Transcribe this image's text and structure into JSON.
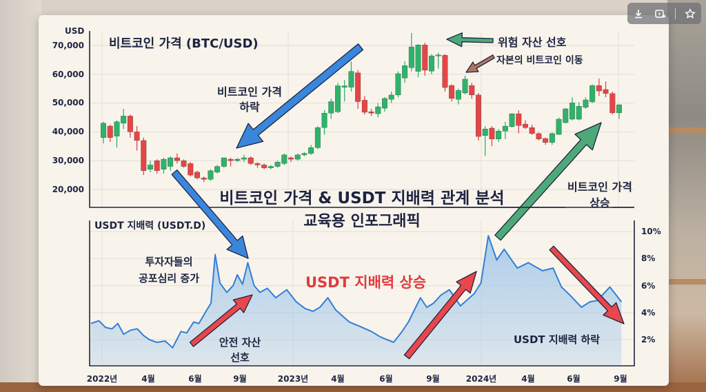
{
  "toolbar": {
    "icons": [
      "download-icon",
      "add-to-video-icon",
      "star-icon"
    ]
  },
  "colors": {
    "up": "#2fb36a",
    "down": "#e64545",
    "usdt_line": "#2f7fd8",
    "usdt_fill": "#a9cbea",
    "text": "#1d2340",
    "accent_red": "#e03a3e",
    "arrow_blue": "#3a86dc",
    "arrow_green": "#4daa78",
    "arrow_red": "#e8474b",
    "arrow_brown": "#b07560"
  },
  "main_title": {
    "line1": "비트코인 가격 & USDT 지배력 관계 분석",
    "line2": "교육용 인포그래픽"
  },
  "annotations": {
    "price_drop": {
      "line1": "비트코인 가격",
      "line2": "하락"
    },
    "risk_on": "위험 자산 선호",
    "capital_flow": "자본의 비트코인 이동",
    "price_rise": {
      "line1": "비트코인 가격",
      "line2": "상승"
    },
    "fear": {
      "line1": "투자자들의",
      "line2": "공포심리 증가"
    },
    "usdt_rise": "USDT 지배력 상승",
    "safe_haven": {
      "line1": "안전 자산",
      "line2": "선호"
    },
    "usdt_fall": "USDT 지배력 하락"
  },
  "chart_data": [
    {
      "type": "candlestick",
      "title": "비트코인 가격 (BTC/USD)",
      "ylabel": "USD",
      "ylim": [
        15000,
        75000
      ],
      "yticks": [
        "70,000",
        "60,000",
        "50,000",
        "40,000",
        "30,000",
        "20,000"
      ],
      "grid": true,
      "ohlc_fields": [
        "open",
        "high",
        "low",
        "close"
      ],
      "candles": [
        [
          38000,
          43500,
          36000,
          43000
        ],
        [
          42000,
          42500,
          36500,
          38000
        ],
        [
          38500,
          44000,
          34500,
          43500
        ],
        [
          43000,
          48000,
          41000,
          45500
        ],
        [
          45500,
          46000,
          38000,
          40000
        ],
        [
          40000,
          42000,
          33500,
          37000
        ],
        [
          37000,
          38000,
          25000,
          26500
        ],
        [
          27000,
          30000,
          26000,
          28500
        ],
        [
          30000,
          30500,
          25500,
          26500
        ],
        [
          27000,
          31000,
          25500,
          30500
        ],
        [
          28000,
          31500,
          26500,
          31000
        ],
        [
          31000,
          32500,
          29000,
          30000
        ],
        [
          30000,
          30500,
          27500,
          28000
        ],
        [
          29000,
          29500,
          24500,
          25000
        ],
        [
          26000,
          26500,
          23500,
          24000
        ],
        [
          24000,
          24500,
          22500,
          23500
        ],
        [
          23500,
          27000,
          23000,
          26500
        ],
        [
          26000,
          28500,
          25500,
          28000
        ],
        [
          28000,
          31000,
          27500,
          31000
        ],
        [
          30500,
          31000,
          28000,
          30000
        ],
        [
          30000,
          31000,
          29500,
          30500
        ],
        [
          30500,
          32000,
          29500,
          31000
        ],
        [
          31000,
          31500,
          28500,
          29000
        ],
        [
          29000,
          29500,
          27500,
          28500
        ],
        [
          28500,
          29000,
          27000,
          27500
        ],
        [
          27500,
          28500,
          27000,
          28000
        ],
        [
          28000,
          30000,
          27500,
          29500
        ],
        [
          29000,
          32500,
          28500,
          32000
        ],
        [
          31000,
          31500,
          29500,
          30500
        ],
        [
          30500,
          32500,
          30000,
          32000
        ],
        [
          32000,
          33000,
          31500,
          32500
        ],
        [
          32500,
          35500,
          32000,
          34500
        ],
        [
          34500,
          42000,
          34000,
          41500
        ],
        [
          41500,
          47500,
          39000,
          46500
        ],
        [
          46500,
          51500,
          44500,
          50500
        ],
        [
          47000,
          57000,
          46500,
          56000
        ],
        [
          55500,
          58000,
          50500,
          56000
        ],
        [
          55500,
          64500,
          54000,
          61000
        ],
        [
          60500,
          61500,
          48000,
          50500
        ],
        [
          51000,
          52500,
          46000,
          46800
        ],
        [
          47000,
          48000,
          45500,
          46500
        ],
        [
          46300,
          50000,
          45000,
          48700
        ],
        [
          48200,
          52000,
          47000,
          51600
        ],
        [
          51300,
          54000,
          50000,
          52800
        ],
        [
          52800,
          61000,
          52000,
          60200
        ],
        [
          58700,
          64500,
          57000,
          63000
        ],
        [
          62300,
          74300,
          61000,
          69500
        ],
        [
          61000,
          70500,
          59000,
          70200
        ],
        [
          70200,
          71000,
          59500,
          61400
        ],
        [
          61100,
          67000,
          60000,
          66400
        ],
        [
          66400,
          67500,
          62000,
          66700
        ],
        [
          66600,
          67000,
          54000,
          55400
        ],
        [
          56100,
          56500,
          50500,
          51600
        ],
        [
          51300,
          55000,
          49500,
          54400
        ],
        [
          53500,
          59500,
          53000,
          58300
        ],
        [
          56100,
          57000,
          51500,
          52800
        ],
        [
          52800,
          53500,
          37000,
          38400
        ],
        [
          38700,
          42000,
          31700,
          41000
        ],
        [
          41300,
          42000,
          35000,
          37500
        ],
        [
          37500,
          41000,
          36500,
          40300
        ],
        [
          40300,
          43500,
          37500,
          42000
        ],
        [
          41800,
          46500,
          41500,
          46300
        ],
        [
          46300,
          47500,
          39500,
          42200
        ],
        [
          42700,
          44000,
          41000,
          41500
        ],
        [
          41500,
          42500,
          39000,
          39400
        ],
        [
          39400,
          39800,
          37000,
          37500
        ],
        [
          37700,
          38000,
          35500,
          36300
        ],
        [
          36300,
          39800,
          35500,
          39400
        ],
        [
          39100,
          45000,
          39000,
          44400
        ],
        [
          43200,
          48200,
          43000,
          48000
        ],
        [
          44400,
          52000,
          44000,
          50100
        ],
        [
          44400,
          50300,
          44000,
          48900
        ],
        [
          48500,
          52000,
          48000,
          51100
        ],
        [
          50400,
          56500,
          50000,
          56100
        ],
        [
          56100,
          58500,
          52500,
          54200
        ],
        [
          54700,
          57500,
          52000,
          53300
        ],
        [
          53300,
          54000,
          46000,
          46600
        ],
        [
          46600,
          49600,
          44500,
          49400
        ]
      ]
    },
    {
      "type": "area",
      "title": "USDT 지배력 (USDT.D)",
      "ylim": [
        0.5,
        10.5
      ],
      "yticks": [
        "10%",
        "8%",
        "6%",
        "4%",
        "2%"
      ],
      "xticks": [
        "2022년",
        "4월",
        "6월",
        "9월",
        "2023년",
        "4월",
        "6월",
        "9월",
        "2024년",
        "4월",
        "6월",
        "9월"
      ],
      "grid": true,
      "points": [
        [
          "2021-12-10",
          3.2
        ],
        [
          "2021-12-25",
          3.4
        ],
        [
          "2022-01-08",
          2.9
        ],
        [
          "2022-01-20",
          2.8
        ],
        [
          "2022-02-01",
          3.2
        ],
        [
          "2022-02-12",
          2.4
        ],
        [
          "2022-02-25",
          2.7
        ],
        [
          "2022-03-08",
          2.8
        ],
        [
          "2022-03-20",
          2.3
        ],
        [
          "2022-04-01",
          2.0
        ],
        [
          "2022-04-15",
          1.8
        ],
        [
          "2022-05-01",
          1.9
        ],
        [
          "2022-05-15",
          1.4
        ],
        [
          "2022-06-01",
          2.6
        ],
        [
          "2022-06-12",
          2.5
        ],
        [
          "2022-06-25",
          3.3
        ],
        [
          "2022-07-05",
          3.2
        ],
        [
          "2022-07-20",
          4.2
        ],
        [
          "2022-07-28",
          4.7
        ],
        [
          "2022-08-06",
          8.3
        ],
        [
          "2022-08-15",
          6.2
        ],
        [
          "2022-08-28",
          5.5
        ],
        [
          "2022-09-10",
          6.0
        ],
        [
          "2022-09-18",
          6.8
        ],
        [
          "2022-09-28",
          6.1
        ],
        [
          "2022-10-08",
          7.7
        ],
        [
          "2022-10-20",
          6.0
        ],
        [
          "2022-11-01",
          5.5
        ],
        [
          "2022-11-15",
          5.8
        ],
        [
          "2022-12-01",
          5.1
        ],
        [
          "2022-12-22",
          5.7
        ],
        [
          "2023-01-10",
          4.8
        ],
        [
          "2023-01-27",
          4.3
        ],
        [
          "2023-02-12",
          4.1
        ],
        [
          "2023-02-25",
          4.4
        ],
        [
          "2023-03-10",
          5.1
        ],
        [
          "2023-03-25",
          4.2
        ],
        [
          "2023-04-21",
          3.3
        ],
        [
          "2023-05-10",
          3.0
        ],
        [
          "2023-06-03",
          2.6
        ],
        [
          "2023-06-20",
          2.2
        ],
        [
          "2023-07-15",
          1.8
        ],
        [
          "2023-08-01",
          2.6
        ],
        [
          "2023-08-13",
          3.3
        ],
        [
          "2023-09-06",
          5.1
        ],
        [
          "2023-09-18",
          4.4
        ],
        [
          "2023-10-01",
          4.7
        ],
        [
          "2023-10-15",
          5.3
        ],
        [
          "2023-11-01",
          5.7
        ],
        [
          "2023-11-22",
          4.5
        ],
        [
          "2023-12-18",
          5.4
        ],
        [
          "2024-01-01",
          6.2
        ],
        [
          "2024-01-15",
          9.7
        ],
        [
          "2024-02-01",
          7.9
        ],
        [
          "2024-02-15",
          8.7
        ],
        [
          "2024-03-10",
          7.3
        ],
        [
          "2024-04-01",
          7.7
        ],
        [
          "2024-04-28",
          7.1
        ],
        [
          "2024-05-18",
          7.3
        ],
        [
          "2024-06-04",
          5.9
        ],
        [
          "2024-06-20",
          5.3
        ],
        [
          "2024-07-12",
          4.4
        ],
        [
          "2024-07-28",
          4.8
        ],
        [
          "2024-08-12",
          4.9
        ],
        [
          "2024-09-06",
          5.9
        ],
        [
          "2024-09-28",
          4.8
        ]
      ]
    }
  ]
}
